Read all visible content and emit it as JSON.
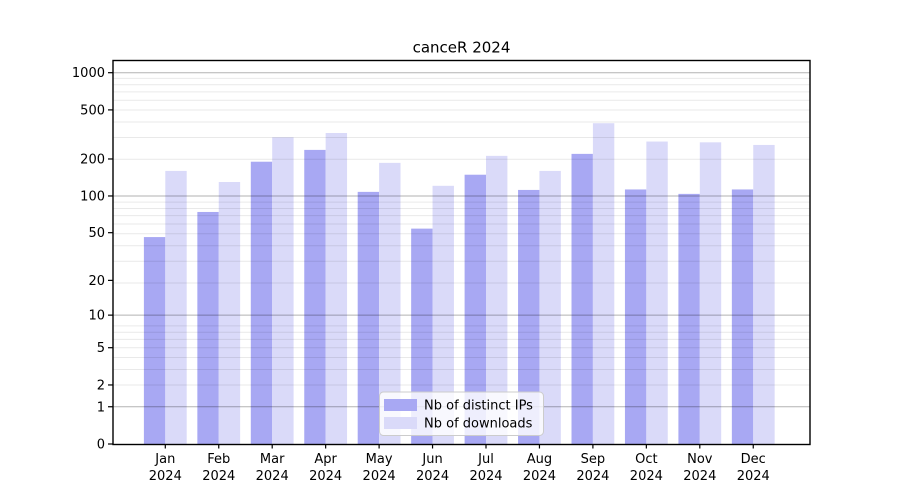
{
  "figure": {
    "title": "canceR 2024"
  },
  "chart_data": {
    "type": "bar",
    "title": "canceR 2024",
    "categories": [
      "Jan 2024",
      "Feb 2024",
      "Mar 2024",
      "Apr 2024",
      "May 2024",
      "Jun 2024",
      "Jul 2024",
      "Aug 2024",
      "Sep 2024",
      "Oct 2024",
      "Nov 2024",
      "Dec 2024"
    ],
    "series": [
      {
        "name": "Nb of distinct IPs",
        "color": "#a8a8f3",
        "values": [
          46,
          74,
          190,
          237,
          108,
          54,
          149,
          112,
          220,
          113,
          104,
          113
        ]
      },
      {
        "name": "Nb of downloads",
        "color": "#dadaf9",
        "values": [
          160,
          130,
          300,
          325,
          186,
          121,
          212,
          160,
          390,
          277,
          273,
          260
        ]
      }
    ],
    "xlabel": "",
    "ylabel": "",
    "yscale": "log1p",
    "ylim": [
      0,
      1255
    ],
    "yticks": [
      0,
      1,
      2,
      5,
      10,
      20,
      50,
      100,
      200,
      500,
      1000
    ],
    "major_grid_values": [
      1,
      10,
      100,
      1000
    ],
    "grid": true,
    "legend_position": "lower center",
    "colors": {
      "grid_major": "rgba(0,0,0,0.30)",
      "grid_minor": "rgba(0,0,0,0.085)",
      "axis": "#000000",
      "text": "#000000",
      "legend_border": "#cccccc",
      "legend_bg": "rgba(255,255,255,0.8)"
    }
  }
}
